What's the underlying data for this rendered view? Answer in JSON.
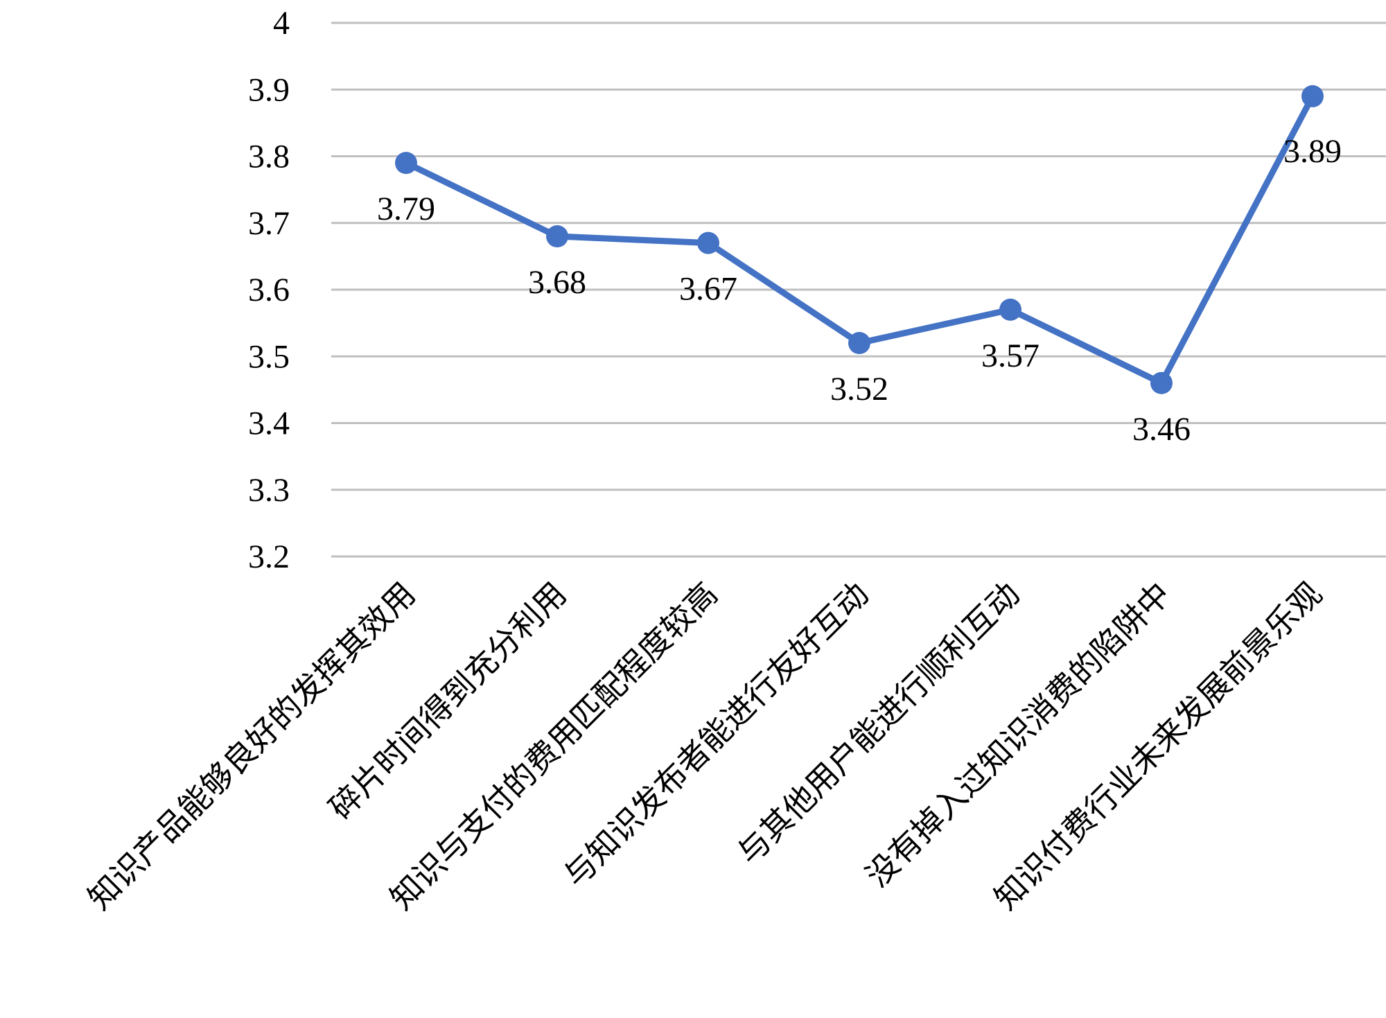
{
  "chart_data": {
    "type": "line",
    "title": "",
    "xlabel": "",
    "ylabel": "",
    "categories": [
      "知识产品能够良好的发挥其效用",
      "碎片时间得到充分利用",
      "知识与支付的费用匹配程度较高",
      "与知识发布者能进行友好互动",
      "与其他用户能进行顺利互动",
      "没有掉入过知识消费的陷阱中",
      "知识付费行业未来发展前景乐观"
    ],
    "series": [
      {
        "values": [
          3.79,
          3.68,
          3.67,
          3.52,
          3.57,
          3.46,
          3.89
        ],
        "color": "#4472C4"
      }
    ],
    "data_labels": [
      "3.79",
      "3.68",
      "3.67",
      "3.52",
      "3.57",
      "3.46",
      "3.89"
    ],
    "y_ticks": [
      "3.2",
      "3.3",
      "3.4",
      "3.5",
      "3.6",
      "3.7",
      "3.8",
      "3.9",
      "4"
    ],
    "ylim": [
      3.2,
      4.0
    ],
    "grid": true,
    "legend": "none",
    "gridline_color": "#BFBFBF",
    "text_color": "#000000"
  }
}
